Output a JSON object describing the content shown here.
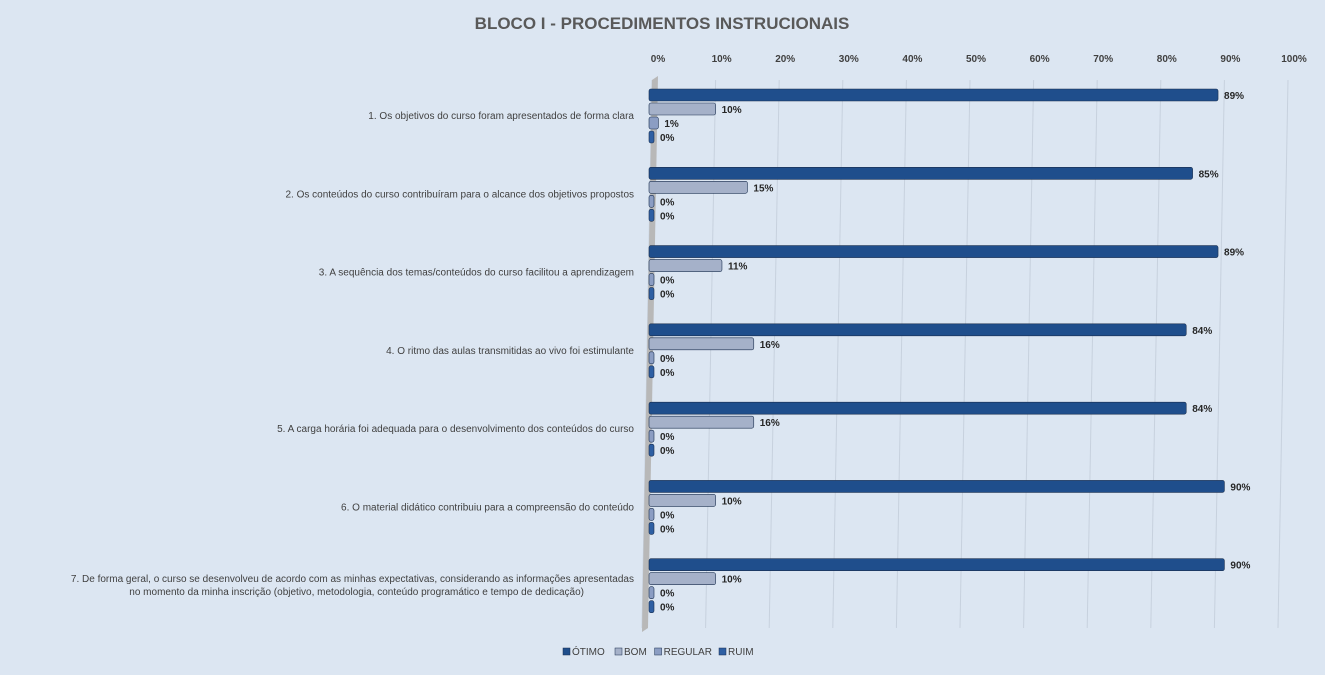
{
  "chart_data": {
    "type": "bar",
    "orientation": "horizontal",
    "title": "BLOCO I - PROCEDIMENTOS  INSTRUCIONAIS",
    "categories": [
      [
        "1. Os objetivos do curso foram apresentados de forma clara"
      ],
      [
        "2. Os conteúdos do curso contribuíram para o alcance dos objetivos propostos"
      ],
      [
        "3. A sequência dos temas/conteúdos do curso facilitou a aprendizagem"
      ],
      [
        "4. O ritmo das aulas transmitidas ao vivo foi estimulante"
      ],
      [
        "5. A carga horária foi adequada para o desenvolvimento dos conteúdos do curso"
      ],
      [
        "6. O material didático contribuiu para a compreensão do conteúdo"
      ],
      [
        "7. De forma geral, o curso se desenvolveu de acordo com as minhas expectativas, considerando as informações apresentadas",
        "no momento da minha inscrição (objetivo, metodologia, conteúdo programático e tempo de dedicação)"
      ]
    ],
    "series": [
      {
        "name": "ÓTIMO",
        "color": "#1f4e8c",
        "values": [
          89,
          85,
          89,
          84,
          84,
          90,
          90
        ]
      },
      {
        "name": "BOM",
        "color": "#a5b1c9",
        "values": [
          10,
          15,
          11,
          16,
          16,
          10,
          10
        ]
      },
      {
        "name": "REGULAR",
        "color": "#8b9dc3",
        "values": [
          1,
          0,
          0,
          0,
          0,
          0,
          0
        ]
      },
      {
        "name": "RUIM",
        "color": "#2e5fa3",
        "values": [
          0,
          0,
          0,
          0,
          0,
          0,
          0
        ]
      }
    ],
    "xlim": [
      0,
      100
    ],
    "xticks": [
      0,
      10,
      20,
      30,
      40,
      50,
      60,
      70,
      80,
      90,
      100
    ],
    "tick_suffix": "%",
    "grid": true,
    "legend": "bottom"
  }
}
